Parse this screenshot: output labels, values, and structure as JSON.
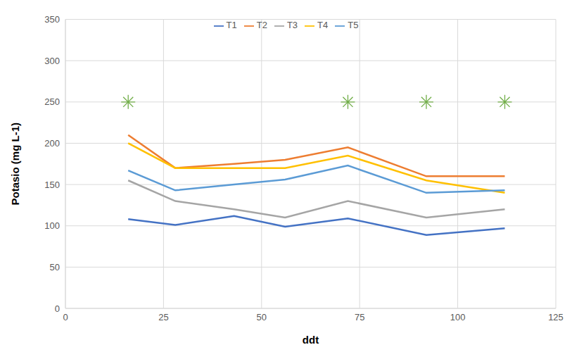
{
  "chart_data": {
    "type": "line",
    "x_label": "ddt",
    "y_label": "Potasio (mg L-1)",
    "x": [
      16,
      28,
      43,
      56,
      72,
      92,
      112
    ],
    "xlim": [
      0,
      125
    ],
    "xticks": [
      0,
      25,
      50,
      75,
      100,
      125
    ],
    "ylim": [
      0,
      350
    ],
    "yticks": [
      0,
      50,
      100,
      150,
      200,
      250,
      300,
      350
    ],
    "grid": true,
    "legend": "top",
    "series": [
      {
        "name": "T1",
        "color": "#4472c4",
        "values": [
          108,
          101,
          112,
          99,
          109,
          89,
          97
        ]
      },
      {
        "name": "T2",
        "color": "#ed7d31",
        "values": [
          210,
          170,
          175,
          180,
          195,
          160,
          160
        ]
      },
      {
        "name": "T3",
        "color": "#a5a5a5",
        "values": [
          155,
          130,
          120,
          110,
          130,
          110,
          120
        ]
      },
      {
        "name": "T4",
        "color": "#ffc000",
        "values": [
          200,
          170,
          170,
          170,
          185,
          155,
          140
        ]
      },
      {
        "name": "T5",
        "color": "#5b9bd5",
        "values": [
          167,
          143,
          150,
          156,
          173,
          140,
          143
        ]
      },
      {
        "type": "scatter",
        "marker": "star",
        "color": "#70ad47",
        "x": [
          16,
          72,
          92,
          112
        ],
        "values": [
          250,
          250,
          250,
          250
        ]
      }
    ]
  }
}
